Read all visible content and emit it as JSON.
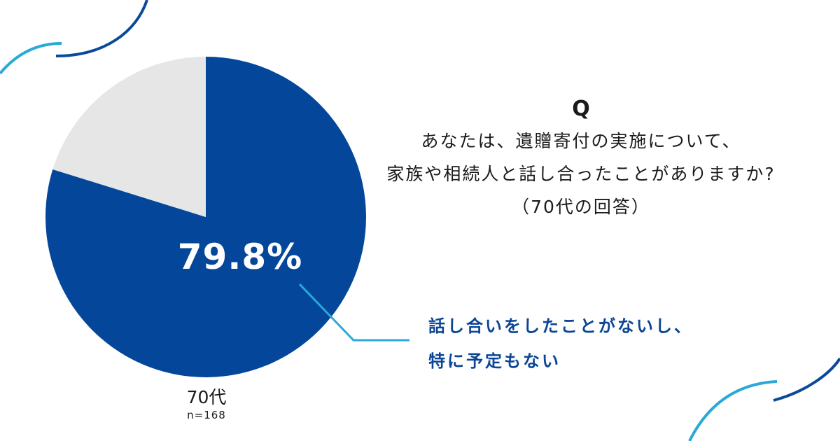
{
  "chart_data": {
    "type": "pie",
    "slices": [
      {
        "label": "話し合いをしたことがないし、特に予定もない",
        "value": 79.8,
        "color": "#04479a"
      },
      {
        "label": "",
        "value": 20.2,
        "color": "#e6e6e6"
      }
    ],
    "data_label": "79.8%",
    "group": "70代",
    "n": "n=168"
  },
  "question": {
    "mark": "Q",
    "lines": [
      "あなたは、遺贈寄付の実施について、",
      "家族や相続人と話し合ったことがありますか?",
      "（70代の回答）"
    ]
  },
  "answer": {
    "lines": [
      "話し合いをしたことがないし、",
      "特に予定もない"
    ]
  },
  "colors": {
    "primary": "#04479a",
    "secondary": "#e6e6e6",
    "leader_line": "#2aa8d8",
    "deco_dark": "#0b4a99",
    "deco_light": "#2aa8d8"
  }
}
